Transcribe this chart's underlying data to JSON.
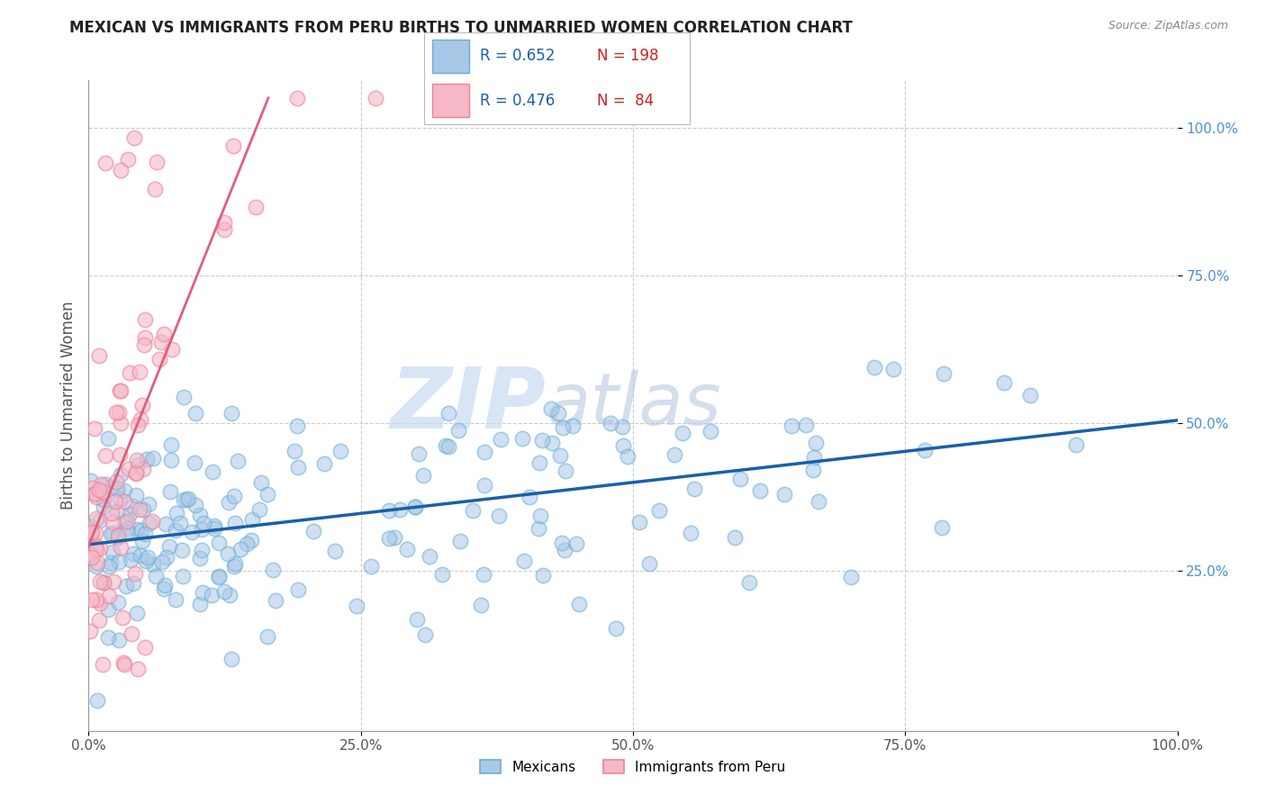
{
  "title": "MEXICAN VS IMMIGRANTS FROM PERU BIRTHS TO UNMARRIED WOMEN CORRELATION CHART",
  "source": "Source: ZipAtlas.com",
  "ylabel": "Births to Unmarried Women",
  "xlim": [
    0,
    1
  ],
  "ylim": [
    -0.02,
    1.08
  ],
  "xticks": [
    0.0,
    0.25,
    0.5,
    0.75,
    1.0
  ],
  "xticklabels": [
    "0.0%",
    "25.0%",
    "50.0%",
    "75.0%",
    "100.0%"
  ],
  "yticks": [
    0.25,
    0.5,
    0.75,
    1.0
  ],
  "yticklabels": [
    "25.0%",
    "50.0%",
    "75.0%",
    "100.0%"
  ],
  "blue_fill": "#a8c8e8",
  "blue_edge": "#6baed6",
  "pink_fill": "#f4b8c8",
  "pink_edge": "#f48098",
  "blue_line_color": "#1a5fa8",
  "pink_line_color": "#e0607a",
  "watermark_color": "#c8daf0",
  "background_color": "#ffffff",
  "grid_color": "#cccccc",
  "title_color": "#222222",
  "r_value_color": "#1a5fa8",
  "n_value_color": "#cc2222",
  "blue_R": 0.652,
  "pink_R": 0.476,
  "blue_N": 198,
  "pink_N": 84,
  "blue_trend_start_y": 0.295,
  "blue_trend_end_y": 0.505,
  "pink_trend_x0": -0.005,
  "pink_trend_y0": 0.27,
  "pink_trend_x1": 0.165,
  "pink_trend_y1": 1.05,
  "watermark": "ZIPAtlas",
  "watermark_zip_color": "#c8daf0",
  "watermark_atlas_color": "#b8c8e0"
}
